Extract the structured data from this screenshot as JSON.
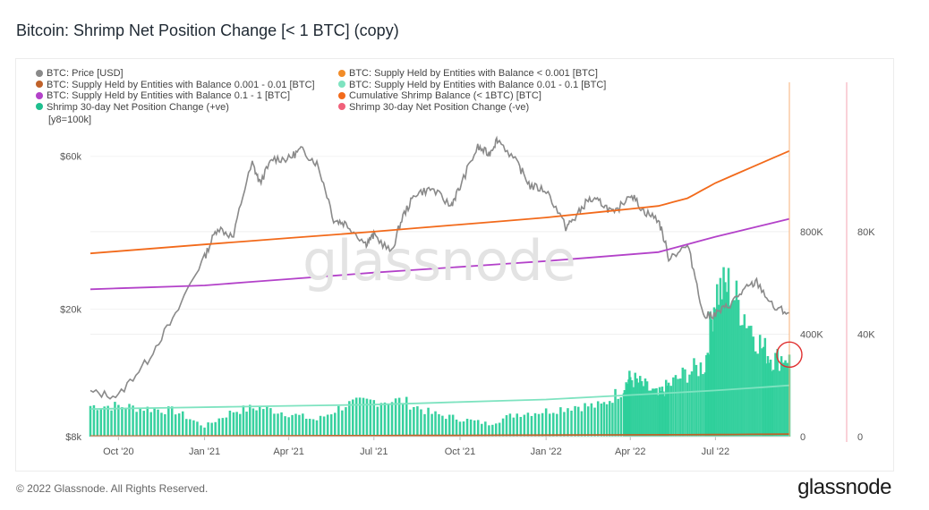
{
  "page": {
    "title": "Bitcoin: Shrimp Net Position Change [< 1 BTC] (copy)",
    "footer": "© 2022 Glassnode. All Rights Reserved.",
    "logo": "glassnode",
    "watermark": "glassnode"
  },
  "chart_data": {
    "type": "line",
    "title": "Bitcoin: Shrimp Net Position Change [< 1 BTC] (copy)",
    "legend_placement": "top-left",
    "y_note": "[y8=100k]",
    "x_ticks": [
      "Oct '20",
      "Jan '21",
      "Apr '21",
      "Jul '21",
      "Oct '21",
      "Jan '22",
      "Apr '22",
      "Jul '22"
    ],
    "x_range": [
      "2020-09-01",
      "2022-09-18"
    ],
    "axes": {
      "price": {
        "scale": "log",
        "range": [
          8000,
          80000
        ],
        "ticks": [
          "$8k",
          "$20k",
          "$60k"
        ],
        "tick_values": [
          8000,
          20000,
          60000
        ]
      },
      "balance_left": {
        "range": [
          0,
          1250000
        ],
        "ticks": [
          "0",
          "400K",
          "800K"
        ],
        "tick_values": [
          0,
          400000,
          800000
        ]
      },
      "change_right": {
        "range": [
          0,
          125000
        ],
        "ticks": [
          "0",
          "40K",
          "80K"
        ],
        "tick_values": [
          0,
          40000,
          80000
        ]
      }
    },
    "legend": [
      {
        "name": "BTC: Price [USD]",
        "color": "#8a8a8a"
      },
      {
        "name": "BTC: Supply Held by Entities with Balance < 0.001 [BTC]",
        "color": "#f28c28"
      },
      {
        "name": "BTC: Supply Held by Entities with Balance 0.001 - 0.01 [BTC]",
        "color": "#c0622a"
      },
      {
        "name": "BTC: Supply Held by Entities with Balance 0.01 - 0.1 [BTC]",
        "color": "#7ee3c0"
      },
      {
        "name": "BTC: Supply Held by Entities with Balance 0.1 - 1 [BTC]",
        "color": "#b342c9"
      },
      {
        "name": "Cumulative Shrimp Balance (< 1BTC) [BTC]",
        "color": "#f26a1b"
      },
      {
        "name": "Shrimp 30-day Net Position Change (+ve)",
        "color": "#1fbf8f"
      },
      {
        "name": "Shrimp 30-day Net Position Change (-ve)",
        "color": "#f0607a"
      }
    ],
    "series": [
      {
        "name": "BTC: Price [USD]",
        "axis": "price",
        "x": [
          "2020-09-01",
          "2020-10-01",
          "2020-11-01",
          "2020-12-01",
          "2021-01-01",
          "2021-01-15",
          "2021-02-01",
          "2021-02-21",
          "2021-03-01",
          "2021-03-15",
          "2021-04-01",
          "2021-04-14",
          "2021-05-01",
          "2021-05-19",
          "2021-06-01",
          "2021-06-22",
          "2021-07-01",
          "2021-07-20",
          "2021-08-01",
          "2021-08-15",
          "2021-09-01",
          "2021-09-21",
          "2021-10-01",
          "2021-10-20",
          "2021-11-01",
          "2021-11-10",
          "2021-12-01",
          "2021-12-15",
          "2022-01-01",
          "2022-01-22",
          "2022-02-01",
          "2022-02-15",
          "2022-03-01",
          "2022-03-15",
          "2022-04-01",
          "2022-04-15",
          "2022-05-01",
          "2022-05-12",
          "2022-06-01",
          "2022-06-18",
          "2022-07-01",
          "2022-07-15",
          "2022-08-01",
          "2022-08-14",
          "2022-09-01",
          "2022-09-18"
        ],
        "values": [
          11000,
          10700,
          13800,
          19000,
          29000,
          36000,
          33500,
          57000,
          49500,
          59000,
          59000,
          63000,
          57000,
          38000,
          37000,
          32000,
          34000,
          30000,
          39000,
          46000,
          47500,
          42000,
          48000,
          64000,
          61000,
          68000,
          57000,
          48500,
          47000,
          36000,
          38500,
          44000,
          43000,
          39500,
          46000,
          40500,
          38000,
          29000,
          31500,
          19000,
          19300,
          20500,
          23000,
          24300,
          20200,
          19500
        ]
      },
      {
        "name": "Cumulative Shrimp Balance (< 1BTC) [BTC]",
        "axis": "balance_left",
        "x": [
          "2020-09-01",
          "2021-01-01",
          "2021-07-01",
          "2022-01-01",
          "2022-05-01",
          "2022-06-01",
          "2022-07-01",
          "2022-09-18"
        ],
        "values": [
          715000,
          750000,
          800000,
          855000,
          900000,
          930000,
          990000,
          1115000
        ]
      },
      {
        "name": "BTC: Supply Held by Entities with Balance 0.1 - 1 [BTC]",
        "axis": "balance_left",
        "x": [
          "2020-09-01",
          "2021-01-01",
          "2021-07-01",
          "2022-01-01",
          "2022-05-01",
          "2022-07-01",
          "2022-09-18"
        ],
        "values": [
          575000,
          590000,
          640000,
          685000,
          720000,
          780000,
          850000
        ]
      },
      {
        "name": "BTC: Supply Held by Entities with Balance 0.01 - 0.1 [BTC]",
        "axis": "balance_left",
        "x": [
          "2020-09-01",
          "2021-07-01",
          "2022-01-01",
          "2022-07-01",
          "2022-09-18"
        ],
        "values": [
          108000,
          125000,
          145000,
          180000,
          200000
        ]
      },
      {
        "name": "BTC: Supply Held by Entities with Balance 0.001 - 0.01 [BTC]",
        "axis": "balance_left",
        "x": [
          "2020-09-01",
          "2021-07-01",
          "2022-01-01",
          "2022-07-01",
          "2022-09-18"
        ],
        "values": [
          2000,
          4000,
          6000,
          8000,
          10000
        ]
      },
      {
        "name": "Shrimp 30-day Net Position Change (+ve)",
        "axis": "change_right",
        "type": "area",
        "x": [
          "2020-09-01",
          "2020-10-01",
          "2020-11-01",
          "2020-12-01",
          "2021-01-01",
          "2021-02-01",
          "2021-03-01",
          "2021-04-01",
          "2021-05-01",
          "2021-06-01",
          "2021-07-01",
          "2021-08-01",
          "2021-09-01",
          "2021-10-01",
          "2021-11-01",
          "2021-12-01",
          "2022-01-01",
          "2022-02-01",
          "2022-03-01",
          "2022-03-25",
          "2022-04-01",
          "2022-04-15",
          "2022-05-01",
          "2022-05-12",
          "2022-06-01",
          "2022-06-20",
          "2022-07-01",
          "2022-07-15",
          "2022-08-01",
          "2022-08-20",
          "2022-09-01",
          "2022-09-18"
        ],
        "values": [
          12000,
          12000,
          11000,
          10000,
          4000,
          10000,
          11500,
          9000,
          6500,
          12500,
          14000,
          14000,
          9000,
          7000,
          5000,
          9000,
          10000,
          12000,
          12000,
          19000,
          23000,
          20000,
          16000,
          20000,
          25000,
          28000,
          56000,
          59000,
          48000,
          35000,
          30000,
          32000
        ]
      }
    ],
    "annotations": [
      {
        "type": "circle",
        "x": "2022-09-18",
        "color": "#e03030"
      }
    ]
  }
}
